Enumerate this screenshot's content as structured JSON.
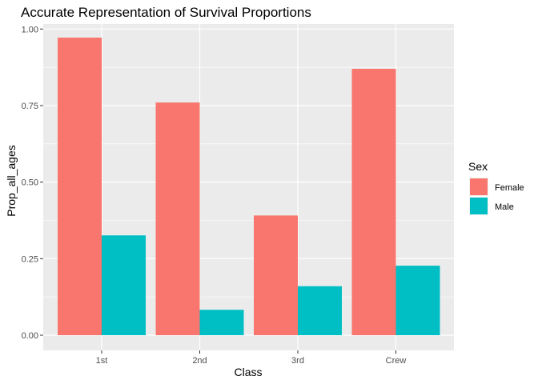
{
  "chart_data": {
    "type": "bar",
    "title": "Accurate Representation of Survival Proportions",
    "xlabel": "Class",
    "ylabel": "Prop_all_ages",
    "categories": [
      "1st",
      "2nd",
      "3rd",
      "Crew"
    ],
    "series": [
      {
        "name": "Female",
        "color": "#F8766D",
        "values": [
          0.972,
          0.76,
          0.391,
          0.87
        ]
      },
      {
        "name": "Male",
        "color": "#00BFC4",
        "values": [
          0.326,
          0.083,
          0.16,
          0.227
        ]
      }
    ],
    "ylim": [
      0,
      1.05
    ],
    "yticks": [
      0.0,
      0.25,
      0.5,
      0.75,
      1.0
    ],
    "ytick_labels": [
      "0.00",
      "0.25",
      "0.50",
      "0.75",
      "1.00"
    ],
    "grid": true,
    "legend": {
      "title": "Sex",
      "position": "right"
    },
    "panel_background": "#EBEBEB"
  }
}
